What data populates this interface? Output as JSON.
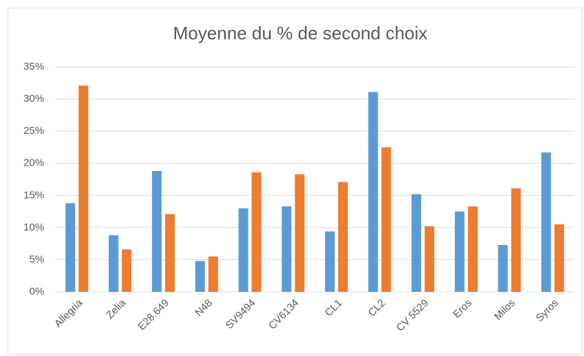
{
  "chart_data": {
    "type": "bar",
    "title": "Moyenne du % de second choix",
    "categories": [
      "Allegria",
      "Zelia",
      "E28.649",
      "N48",
      "SV9494",
      "CV6134",
      "CL1",
      "CL2",
      "CV 5529",
      "Eros",
      "Milos",
      "Syros"
    ],
    "series": [
      {
        "color": "#5b9bd5",
        "values": [
          13.8,
          8.8,
          18.8,
          4.8,
          13.0,
          13.3,
          9.4,
          31.1,
          15.2,
          12.5,
          7.3,
          21.7
        ]
      },
      {
        "color": "#ed7d31",
        "values": [
          32.1,
          6.6,
          12.1,
          5.5,
          18.6,
          18.3,
          17.1,
          22.5,
          10.2,
          13.3,
          16.1,
          10.5
        ]
      }
    ],
    "ylim": [
      0,
      35
    ],
    "yticks": [
      {
        "value": 0,
        "label": "0%"
      },
      {
        "value": 5,
        "label": "5%"
      },
      {
        "value": 10,
        "label": "10%"
      },
      {
        "value": 15,
        "label": "15%"
      },
      {
        "value": 20,
        "label": "20%"
      },
      {
        "value": 25,
        "label": "25%"
      },
      {
        "value": 30,
        "label": "30%"
      },
      {
        "value": 35,
        "label": "35%"
      }
    ],
    "grid": true
  }
}
